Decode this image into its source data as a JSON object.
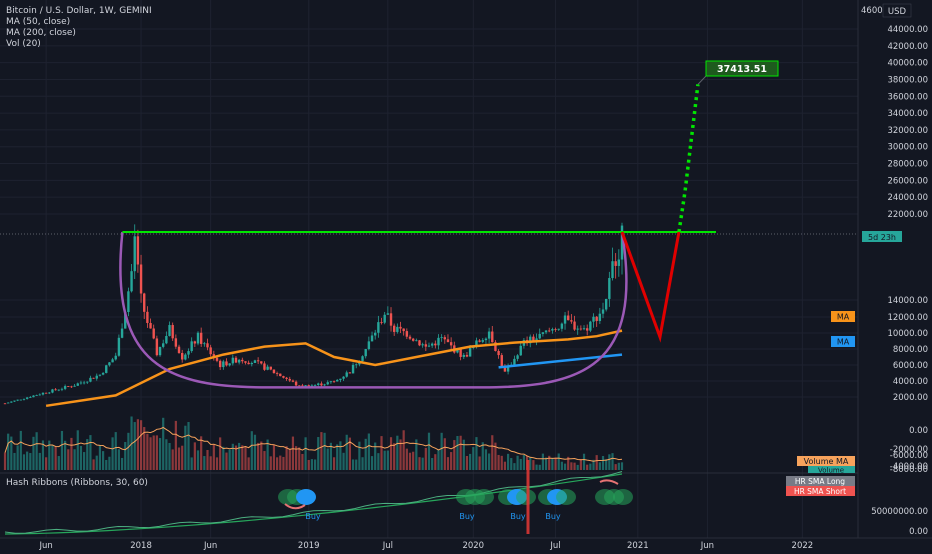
{
  "header": {
    "symbol_line": "Bitcoin / U.S. Dollar, 1W, GEMINI",
    "indicators": [
      "MA (50, close)",
      "MA (200, close)",
      "Vol (20)"
    ]
  },
  "currency_badge": "USD",
  "price_axis": {
    "ticks": [
      "2000.00",
      "4000.00",
      "6000.00",
      "8000.00",
      "10000.00",
      "12000.00",
      "14000.00",
      "22000.00",
      "24000.00",
      "26000.00",
      "28000.00",
      "30000.00",
      "32000.00",
      "34000.00",
      "36000.00",
      "38000.00",
      "40000.00",
      "42000.00",
      "44000.00"
    ],
    "top_label": "4600",
    "volume_ticks": [
      "0.00",
      "-2000.00",
      "-4000.00",
      "-6000.00",
      "-8000.00"
    ],
    "lower_ticks": [
      "50000000.00",
      "0.00"
    ]
  },
  "time_axis": {
    "ticks": [
      "Jun",
      "2018",
      "Jun",
      "2019",
      "Jul",
      "2020",
      "Jul",
      "2021",
      "Jun",
      "2022"
    ]
  },
  "labels": {
    "target": "37413.51",
    "countdown": "5d 23h",
    "ma_tag_1": "MA",
    "ma_tag_2": "MA",
    "volume_ma_tag": "Volume MA",
    "volume_tag": "Volume",
    "hash_ribbons_title": "Hash Ribbons (Ribbons, 30, 60)",
    "hr_long_tag": "HR SMA Long",
    "hr_short_tag": "HR SMA Short",
    "buy_labels": [
      "Buy",
      "Buy",
      "Buy",
      "Buy"
    ]
  },
  "colors": {
    "background": "#131722",
    "grid": "#1e2230",
    "axis_text": "#b2b5be",
    "candle_up": "#26a69a",
    "candle_down": "#ef5350",
    "ma50": "#f7931a",
    "ma200": "#2196f3",
    "cup": "#9b59b6",
    "resistance": "#00e600",
    "projection_down": "#e00000",
    "target_fill": "#1e5a1e",
    "countdown_fill": "#26a69a",
    "ribbon_green": "#26a65b",
    "ribbon_red": "#e57373",
    "buy_dot": "#2196f3",
    "hr_long": "#787b86",
    "hr_short": "#ef5350",
    "volume_ma": "#f7a35c"
  },
  "chart_data": {
    "type": "candlestick",
    "symbol": "Bitcoin / U.S. Dollar",
    "interval": "1W",
    "exchange": "GEMINI",
    "ylim": [
      0,
      46000
    ],
    "y_scale": "mixed",
    "price_path": [
      [
        "2017-03-06",
        1200
      ],
      [
        "2017-06-05",
        2600
      ],
      [
        "2017-08-07",
        3500
      ],
      [
        "2017-10-02",
        4800
      ],
      [
        "2017-11-06",
        7200
      ],
      [
        "2017-12-11",
        17000
      ],
      [
        "2017-12-18",
        19500
      ],
      [
        "2018-01-01",
        14000
      ],
      [
        "2018-02-05",
        7500
      ],
      [
        "2018-03-05",
        10500
      ],
      [
        "2018-04-02",
        7000
      ],
      [
        "2018-05-07",
        9500
      ],
      [
        "2018-06-25",
        6000
      ],
      [
        "2018-08-06",
        6800
      ],
      [
        "2018-09-10",
        6300
      ],
      [
        "2018-11-19",
        4300
      ],
      [
        "2018-12-17",
        3300
      ],
      [
        "2019-01-21",
        3500
      ],
      [
        "2019-03-04",
        3900
      ],
      [
        "2019-04-08",
        5200
      ],
      [
        "2019-05-13",
        8000
      ],
      [
        "2019-06-24",
        12500
      ],
      [
        "2019-07-15",
        10500
      ],
      [
        "2019-08-12",
        10000
      ],
      [
        "2019-09-23",
        8200
      ],
      [
        "2019-10-28",
        9300
      ],
      [
        "2019-12-16",
        7000
      ],
      [
        "2020-02-10",
        10300
      ],
      [
        "2020-03-16",
        5000
      ],
      [
        "2020-04-27",
        8800
      ],
      [
        "2020-06-01",
        9500
      ],
      [
        "2020-07-27",
        11500
      ],
      [
        "2020-09-07",
        10400
      ],
      [
        "2020-10-19",
        13000
      ],
      [
        "2020-11-16",
        18500
      ],
      [
        "2020-11-30",
        19500
      ]
    ],
    "ma50": [
      [
        "2017-06-05",
        900
      ],
      [
        "2017-11-06",
        2200
      ],
      [
        "2018-03-05",
        5500
      ],
      [
        "2018-07-02",
        7300
      ],
      [
        "2018-10-01",
        8300
      ],
      [
        "2018-12-31",
        8700
      ],
      [
        "2019-03-04",
        7000
      ],
      [
        "2019-06-03",
        6000
      ],
      [
        "2019-09-02",
        7000
      ],
      [
        "2019-12-30",
        8300
      ],
      [
        "2020-04-06",
        8800
      ],
      [
        "2020-08-03",
        9200
      ],
      [
        "2020-10-05",
        9600
      ],
      [
        "2020-11-30",
        10300
      ]
    ],
    "ma200": [
      [
        "2020-03-02",
        5700
      ],
      [
        "2020-11-30",
        7300
      ]
    ],
    "annotations": {
      "resistance_level": 19800,
      "cup_low": 3200,
      "projected_low": 9500,
      "projected_low_date": "2021-02-22",
      "breakout_date": "2021-04-05",
      "target": 37413.51
    },
    "volume_ticks": [
      0,
      -2000,
      -4000,
      -6000,
      -8000
    ],
    "hash_ribbons": {
      "period_short": 30,
      "period_long": 60,
      "ticks": [
        50000000,
        0
      ],
      "buy_signals": [
        "2019-01-14",
        "2019-12-30",
        "2020-05-18",
        "2020-07-20"
      ]
    }
  }
}
